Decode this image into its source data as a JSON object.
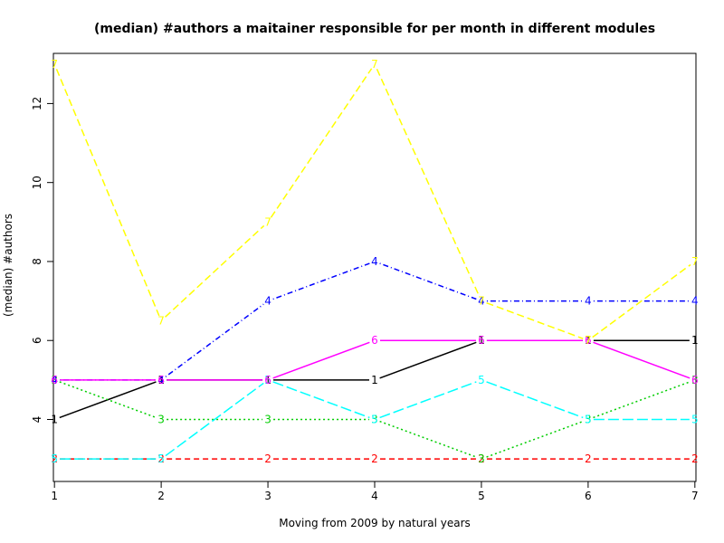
{
  "chart_data": {
    "type": "line",
    "title": "(median) #authors a maitainer responsible for per month in different modules",
    "xlabel": "Moving from 2009 by natural years",
    "ylabel": "(median) #authors",
    "x": [
      1,
      2,
      3,
      4,
      5,
      6,
      7
    ],
    "xticks": [
      "1",
      "2",
      "3",
      "4",
      "5",
      "6",
      "7"
    ],
    "yticks": [
      "4",
      "6",
      "8",
      "10",
      "12"
    ],
    "xlim": [
      0.99,
      7.01
    ],
    "ylim": [
      2.43,
      13.27
    ],
    "grid": false,
    "series": [
      {
        "marker": "1",
        "color": "#000000",
        "dash": "",
        "values": [
          4,
          5,
          5,
          5,
          6,
          6,
          6
        ]
      },
      {
        "marker": "2",
        "color": "#ff0000",
        "dash": "6 4",
        "values": [
          3,
          3,
          3,
          3,
          3,
          3,
          3
        ]
      },
      {
        "marker": "3",
        "color": "#00cd00",
        "dash": "2 3",
        "values": [
          5,
          4,
          4,
          4,
          3,
          4,
          5
        ]
      },
      {
        "marker": "4",
        "color": "#0000ff",
        "dash": "1 3 6 3",
        "values": [
          5,
          5,
          7,
          8,
          7,
          7,
          7
        ]
      },
      {
        "marker": "5",
        "color": "#00ffff",
        "dash": "12 4",
        "values": [
          3,
          3,
          5,
          4,
          5,
          4,
          4
        ]
      },
      {
        "marker": "6",
        "color": "#ff00ff",
        "dash": "",
        "values": [
          5,
          5,
          5,
          6,
          6,
          6,
          5
        ]
      },
      {
        "marker": "7",
        "color": "#ffff00",
        "dash": "8 4",
        "values": [
          13,
          6.5,
          9,
          13,
          7,
          6,
          8
        ]
      }
    ]
  }
}
